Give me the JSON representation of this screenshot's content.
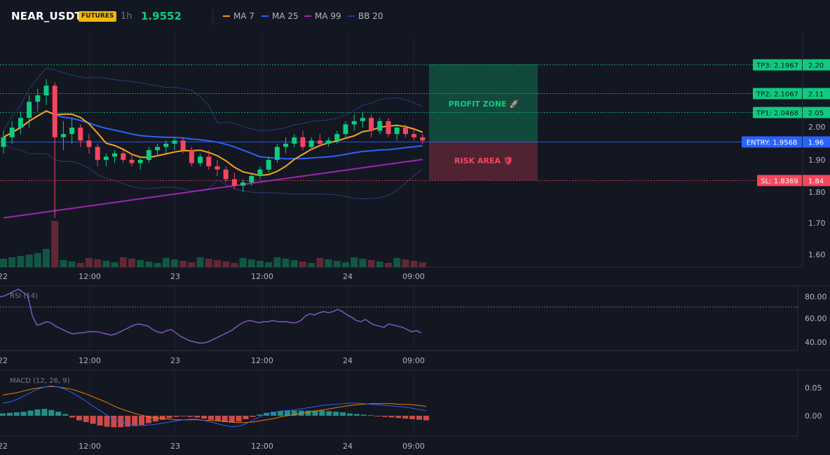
{
  "header": {
    "symbol": "NEAR_USDT",
    "badge": "FUTURES",
    "timeframe": "1h",
    "price": "1.9552",
    "legend": [
      {
        "label": "MA 7",
        "color": "#f7931a"
      },
      {
        "label": "MA 25",
        "color": "#2962ff"
      },
      {
        "label": "MA 99",
        "color": "#9c27b0"
      },
      {
        "label": "BB 20",
        "color": "#1e3a8a"
      }
    ]
  },
  "colors": {
    "background": "#131722",
    "up": "#0ecb81",
    "down": "#f6465d",
    "ma7": "#f7a41d",
    "ma25": "#2962ff",
    "ma99": "#9c27b0",
    "bb": "#2a3a7a",
    "rsi": "#7e57c2",
    "macd": "#2962ff",
    "signal": "#f57c00"
  },
  "price_axis": [
    "2.00",
    "1.90",
    "1.80",
    "1.70",
    "1.60"
  ],
  "time_axis": [
    "22",
    "12:00",
    "23",
    "12:00",
    "24",
    "09:00"
  ],
  "zones": {
    "profit_label": "PROFIT ZONE 🚀",
    "risk_label": "RISK AREA 🛡"
  },
  "levels": {
    "tp3": {
      "label": "TP3: 2.1967",
      "axis": "2.20",
      "value": 2.1967
    },
    "tp2": {
      "label": "TP2: 2.1067",
      "axis": "2.11",
      "value": 2.1067
    },
    "tp1": {
      "label": "TP1: 2.0468",
      "axis": "2.05",
      "value": 2.0468
    },
    "entry": {
      "label": "ENTRY: 1.9568",
      "axis": "1.96",
      "value": 1.9568
    },
    "sl": {
      "label": "SL: 1.8369",
      "axis": "1.84",
      "value": 1.8369
    }
  },
  "rsi": {
    "label": "RSI (14)",
    "axis": [
      "80.00",
      "60.00",
      "40.00"
    ],
    "values": [
      79,
      80,
      82,
      84,
      86,
      83,
      80,
      62,
      54,
      55,
      57,
      56,
      53,
      51,
      49,
      47,
      46,
      47,
      47,
      48,
      48,
      48,
      47,
      46,
      45,
      46,
      48,
      50,
      52,
      54,
      55,
      54,
      53,
      50,
      48,
      47,
      49,
      50,
      47,
      44,
      42,
      40,
      39,
      38,
      38,
      39,
      41,
      43,
      45,
      47,
      49,
      52,
      55,
      57,
      58,
      57,
      56,
      57,
      57,
      58,
      57,
      57,
      57,
      56,
      56,
      58,
      62,
      64,
      63,
      65,
      66,
      65,
      66,
      68,
      66,
      63,
      61,
      58,
      57,
      59,
      56,
      54,
      53,
      52,
      55,
      54,
      53,
      52,
      50,
      48,
      49,
      47
    ]
  },
  "macd": {
    "label": "MACD (12, 26, 9)",
    "axis": [
      "0.05",
      "0.00"
    ],
    "macd_values": [
      0.022,
      0.024,
      0.028,
      0.034,
      0.04,
      0.046,
      0.05,
      0.052,
      0.05,
      0.046,
      0.04,
      0.033,
      0.025,
      0.017,
      0.009,
      0.001,
      -0.006,
      -0.011,
      -0.014,
      -0.016,
      -0.017,
      -0.016,
      -0.015,
      -0.013,
      -0.011,
      -0.009,
      -0.007,
      -0.006,
      -0.006,
      -0.008,
      -0.011,
      -0.014,
      -0.017,
      -0.019,
      -0.018,
      -0.014,
      -0.008,
      -0.002,
      0.003,
      0.006,
      0.008,
      0.009,
      0.01,
      0.012,
      0.014,
      0.016,
      0.018,
      0.019,
      0.02,
      0.021,
      0.022,
      0.022,
      0.021,
      0.02,
      0.019,
      0.018,
      0.017,
      0.016,
      0.015,
      0.013,
      0.011,
      0.009
    ],
    "signal_values": [
      0.036,
      0.038,
      0.04,
      0.043,
      0.046,
      0.048,
      0.05,
      0.051,
      0.05,
      0.048,
      0.046,
      0.042,
      0.038,
      0.033,
      0.028,
      0.023,
      0.017,
      0.012,
      0.008,
      0.004,
      0.001,
      -0.002,
      -0.004,
      -0.005,
      -0.006,
      -0.007,
      -0.007,
      -0.007,
      -0.007,
      -0.008,
      -0.008,
      -0.009,
      -0.01,
      -0.011,
      -0.012,
      -0.012,
      -0.011,
      -0.009,
      -0.007,
      -0.005,
      -0.002,
      0.0,
      0.002,
      0.004,
      0.006,
      0.008,
      0.01,
      0.012,
      0.014,
      0.016,
      0.018,
      0.019,
      0.02,
      0.021,
      0.021,
      0.021,
      0.021,
      0.02,
      0.02,
      0.019,
      0.018,
      0.016
    ],
    "hist_values": [
      0.004,
      0.005,
      0.006,
      0.007,
      0.009,
      0.011,
      0.012,
      0.01,
      0.007,
      0.003,
      -0.003,
      -0.008,
      -0.011,
      -0.014,
      -0.017,
      -0.019,
      -0.02,
      -0.02,
      -0.019,
      -0.018,
      -0.016,
      -0.013,
      -0.01,
      -0.007,
      -0.004,
      -0.002,
      -0.001,
      -0.002,
      -0.003,
      -0.005,
      -0.007,
      -0.009,
      -0.011,
      -0.012,
      -0.01,
      -0.006,
      -0.002,
      0.002,
      0.005,
      0.007,
      0.008,
      0.009,
      0.009,
      0.009,
      0.009,
      0.009,
      0.009,
      0.008,
      0.007,
      0.006,
      0.004,
      0.003,
      0.002,
      0.001,
      -0.001,
      -0.002,
      -0.003,
      -0.004,
      -0.005,
      -0.006,
      -0.007,
      -0.008
    ]
  },
  "candles": [
    [
      1.94,
      1.99,
      1.92,
      1.97
    ],
    [
      1.97,
      2.02,
      1.95,
      2.0
    ],
    [
      2.0,
      2.05,
      1.98,
      2.03
    ],
    [
      2.03,
      2.1,
      2.0,
      2.08
    ],
    [
      2.08,
      2.12,
      2.05,
      2.1
    ],
    [
      2.1,
      2.15,
      2.07,
      2.13
    ],
    [
      2.13,
      2.14,
      1.88,
      1.97
    ],
    [
      1.97,
      2.02,
      1.93,
      1.98
    ],
    [
      1.98,
      2.03,
      1.95,
      2.0
    ],
    [
      2.0,
      2.01,
      1.94,
      1.96
    ],
    [
      1.96,
      1.98,
      1.92,
      1.94
    ],
    [
      1.94,
      1.95,
      1.88,
      1.9
    ],
    [
      1.9,
      1.92,
      1.88,
      1.91
    ],
    [
      1.91,
      1.93,
      1.89,
      1.92
    ],
    [
      1.92,
      1.93,
      1.89,
      1.9
    ],
    [
      1.9,
      1.92,
      1.88,
      1.89
    ],
    [
      1.89,
      1.91,
      1.87,
      1.9
    ],
    [
      1.9,
      1.94,
      1.89,
      1.93
    ],
    [
      1.93,
      1.95,
      1.91,
      1.94
    ],
    [
      1.94,
      1.96,
      1.92,
      1.95
    ],
    [
      1.95,
      1.97,
      1.93,
      1.96
    ],
    [
      1.96,
      1.97,
      1.92,
      1.93
    ],
    [
      1.93,
      1.94,
      1.88,
      1.89
    ],
    [
      1.89,
      1.92,
      1.88,
      1.91
    ],
    [
      1.91,
      1.93,
      1.87,
      1.88
    ],
    [
      1.88,
      1.9,
      1.85,
      1.87
    ],
    [
      1.87,
      1.88,
      1.83,
      1.84
    ],
    [
      1.84,
      1.86,
      1.81,
      1.82
    ],
    [
      1.82,
      1.84,
      1.8,
      1.83
    ],
    [
      1.83,
      1.86,
      1.82,
      1.85
    ],
    [
      1.85,
      1.88,
      1.84,
      1.87
    ],
    [
      1.87,
      1.91,
      1.86,
      1.9
    ],
    [
      1.9,
      1.95,
      1.89,
      1.94
    ],
    [
      1.94,
      1.97,
      1.92,
      1.95
    ],
    [
      1.95,
      1.98,
      1.94,
      1.97
    ],
    [
      1.97,
      1.99,
      1.93,
      1.94
    ],
    [
      1.94,
      1.97,
      1.93,
      1.96
    ],
    [
      1.96,
      1.98,
      1.94,
      1.95
    ],
    [
      1.95,
      1.97,
      1.94,
      1.96
    ],
    [
      1.96,
      1.99,
      1.95,
      1.98
    ],
    [
      1.98,
      2.02,
      1.97,
      2.01
    ],
    [
      2.01,
      2.04,
      1.99,
      2.02
    ],
    [
      2.02,
      2.05,
      2.0,
      2.03
    ],
    [
      2.03,
      2.04,
      1.97,
      1.99
    ],
    [
      1.99,
      2.03,
      1.98,
      2.02
    ],
    [
      2.02,
      2.03,
      1.97,
      1.98
    ],
    [
      1.98,
      2.01,
      1.96,
      2.0
    ],
    [
      2.0,
      2.01,
      1.97,
      1.98
    ],
    [
      1.98,
      2.0,
      1.96,
      1.97
    ],
    [
      1.97,
      1.98,
      1.95,
      1.96
    ]
  ]
}
